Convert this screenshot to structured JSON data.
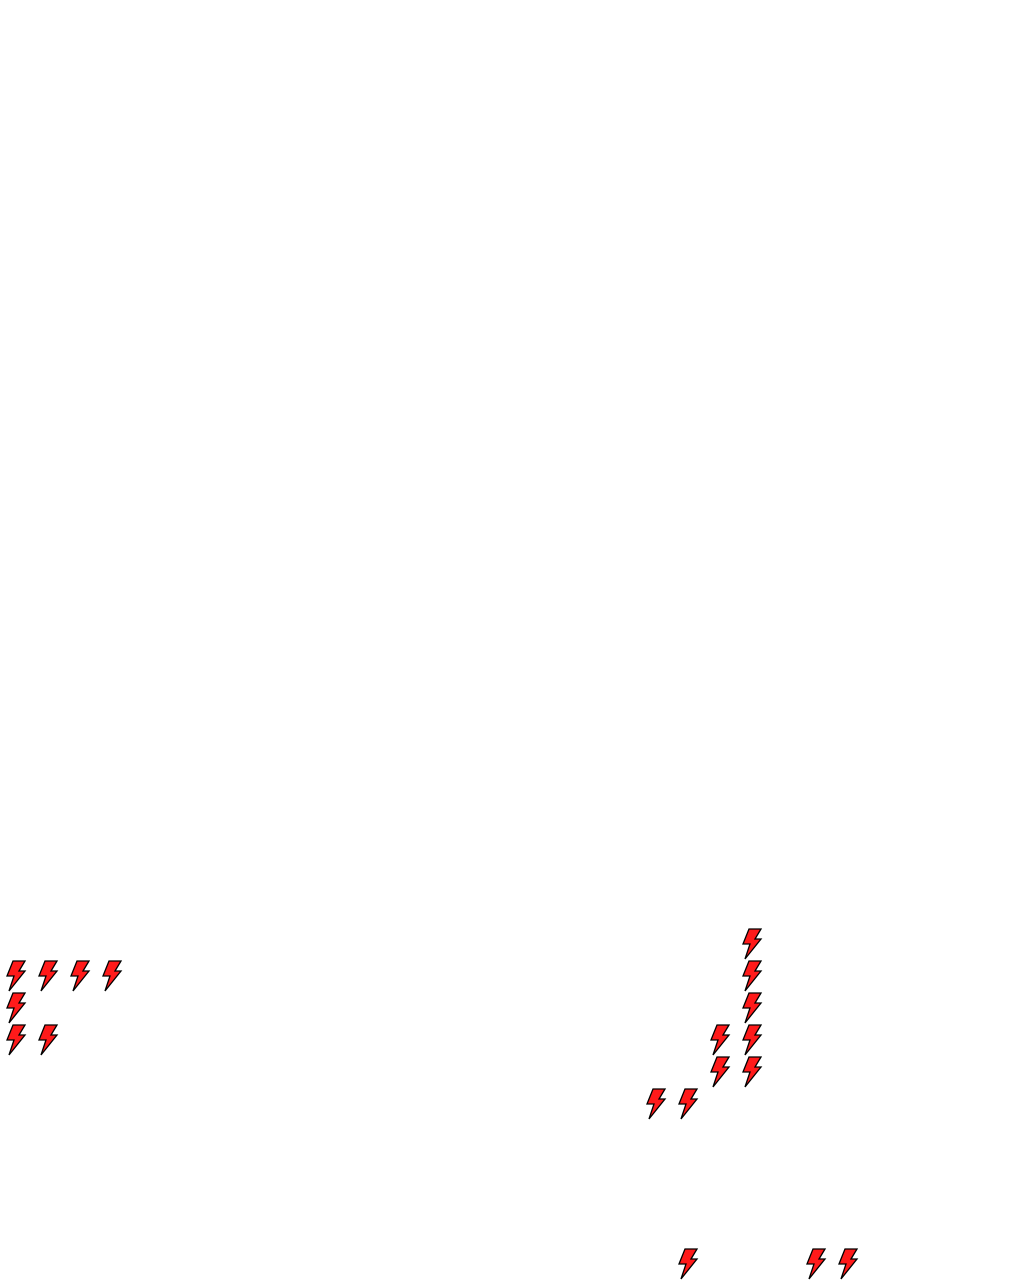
{
  "game": {
    "background_color": "#ffffff",
    "tile_icon": "lightning-bolt-icon",
    "tile_color": "#ff1a1a",
    "tile_outline_color": "#000000"
  }
}
